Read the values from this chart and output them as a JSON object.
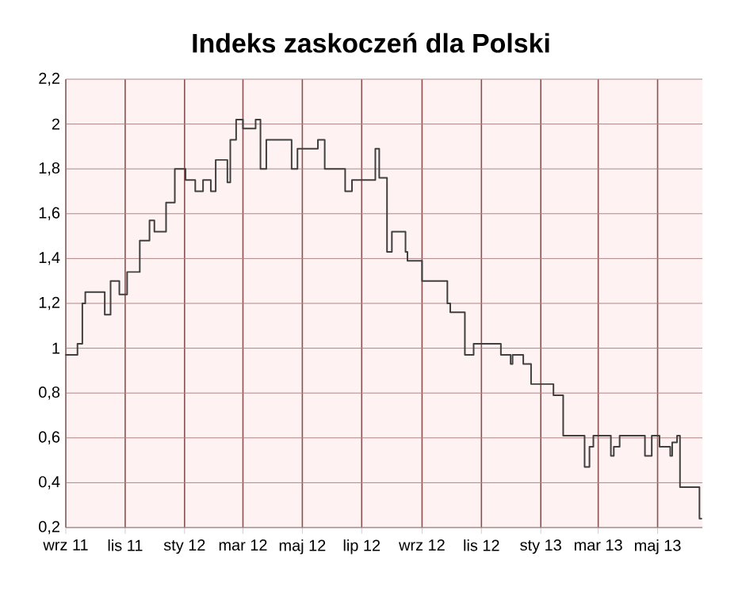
{
  "chart_data": {
    "type": "step",
    "title": "Indeks zaskoczeń dla Polski",
    "x": [
      "2011-09-01",
      "2011-09-13",
      "2011-09-18",
      "2011-09-21",
      "2011-10-11",
      "2011-10-17",
      "2011-10-26",
      "2011-11-03",
      "2011-11-16",
      "2011-11-26",
      "2011-12-01",
      "2011-12-13",
      "2011-12-22",
      "2012-01-02",
      "2012-01-12",
      "2012-01-20",
      "2012-01-28",
      "2012-02-02",
      "2012-02-14",
      "2012-02-17",
      "2012-02-23",
      "2012-03-01",
      "2012-03-14",
      "2012-03-19",
      "2012-03-25",
      "2012-04-20",
      "2012-04-26",
      "2012-05-17",
      "2012-05-24",
      "2012-06-14",
      "2012-06-21",
      "2012-07-15",
      "2012-07-19",
      "2012-07-27",
      "2012-08-01",
      "2012-08-15",
      "2012-08-17",
      "2012-09-01",
      "2012-09-27",
      "2012-09-30",
      "2012-10-15",
      "2012-10-24",
      "2012-11-21",
      "2012-12-01",
      "2012-12-03",
      "2012-12-14",
      "2012-12-22",
      "2013-01-14",
      "2013-01-24",
      "2013-02-15",
      "2013-02-20",
      "2013-02-24",
      "2013-03-14",
      "2013-03-17",
      "2013-03-23",
      "2013-04-18",
      "2013-04-25",
      "2013-05-03",
      "2013-05-14",
      "2013-05-16",
      "2013-05-21",
      "2013-05-24",
      "2013-06-13",
      "2013-06-15"
    ],
    "series": [
      {
        "color": "#404040",
        "values": [
          0.97,
          1.02,
          1.2,
          1.25,
          1.15,
          1.3,
          1.24,
          1.34,
          1.48,
          1.57,
          1.52,
          1.65,
          1.8,
          1.75,
          1.7,
          1.75,
          1.7,
          1.84,
          1.74,
          1.93,
          2.02,
          1.98,
          2.02,
          1.8,
          1.93,
          1.8,
          1.89,
          1.93,
          1.8,
          1.7,
          1.75,
          1.89,
          1.76,
          1.43,
          1.52,
          1.43,
          1.39,
          1.3,
          1.2,
          1.16,
          0.97,
          1.02,
          0.97,
          0.93,
          0.97,
          0.93,
          0.84,
          0.79,
          0.61,
          0.47,
          0.56,
          0.61,
          0.52,
          0.56,
          0.61,
          0.52,
          0.61,
          0.56,
          0.52,
          0.58,
          0.61,
          0.38,
          0.24,
          0.24
        ]
      }
    ],
    "xlim": [
      "2011-09-01",
      "2013-06-16"
    ],
    "xticks": [
      {
        "value": "2011-09-01",
        "label": "wrz 11"
      },
      {
        "value": "2011-11-01",
        "label": "lis 11"
      },
      {
        "value": "2012-01-01",
        "label": "sty 12"
      },
      {
        "value": "2012-03-01",
        "label": "mar 12"
      },
      {
        "value": "2012-05-01",
        "label": "maj 12"
      },
      {
        "value": "2012-07-01",
        "label": "lip 12"
      },
      {
        "value": "2012-09-01",
        "label": "wrz 12"
      },
      {
        "value": "2012-11-01",
        "label": "lis 12"
      },
      {
        "value": "2013-01-01",
        "label": "sty 13"
      },
      {
        "value": "2013-03-01",
        "label": "mar 13"
      },
      {
        "value": "2013-05-01",
        "label": "maj 13"
      }
    ],
    "ylim": [
      0.2,
      2.2
    ],
    "yticks": [
      {
        "value": 0.2,
        "label": "0,2"
      },
      {
        "value": 0.4,
        "label": "0,4"
      },
      {
        "value": 0.6,
        "label": "0,6"
      },
      {
        "value": 0.8,
        "label": "0,8"
      },
      {
        "value": 1,
        "label": "1"
      },
      {
        "value": 1.2,
        "label": "1,2"
      },
      {
        "value": 1.4,
        "label": "1,4"
      },
      {
        "value": 1.6,
        "label": "1,6"
      },
      {
        "value": 1.8,
        "label": "1,8"
      },
      {
        "value": 2,
        "label": "2"
      },
      {
        "value": 2.2,
        "label": "2,2"
      }
    ],
    "grid": true
  }
}
